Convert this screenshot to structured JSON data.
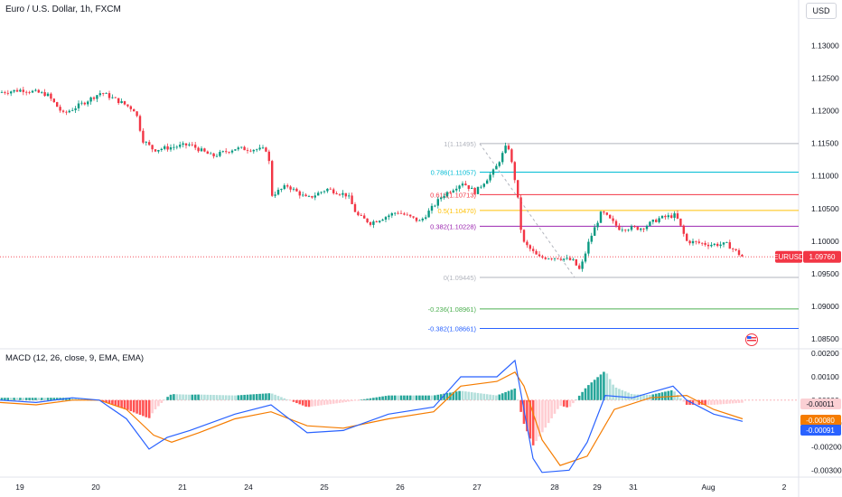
{
  "header": {
    "title": "Euro / U.S. Dollar, 1h, FXCM",
    "currency_button": "USD"
  },
  "price_axis": {
    "ticks": [
      "1.13000",
      "1.12500",
      "1.12000",
      "1.11500",
      "1.11000",
      "1.10500",
      "1.10000",
      "1.09500",
      "1.09000",
      "1.08500"
    ],
    "range": [
      1.0835,
      1.1335
    ]
  },
  "time_axis": {
    "labels": [
      "19",
      "20",
      "21",
      "24",
      "25",
      "26",
      "27",
      "28",
      "29",
      "31",
      "Aug",
      "2"
    ]
  },
  "last_price": {
    "symbol": "EURUSD",
    "value": "1.09760",
    "color": "#f23645"
  },
  "fibonacci": [
    {
      "label": "1(1.11495)",
      "price": 1.11495,
      "color": "#b2b5be"
    },
    {
      "label": "0.786(1.11057)",
      "price": 1.11057,
      "color": "#00bcd4"
    },
    {
      "label": "0.618(1.10713)",
      "price": 1.10713,
      "color": "#f23645"
    },
    {
      "label": "0.5(1.10470)",
      "price": 1.1047,
      "color": "#ffc107"
    },
    {
      "label": "0.382(1.10228)",
      "price": 1.10228,
      "color": "#9c27b0"
    },
    {
      "label": "0(1.09445)",
      "price": 1.09445,
      "color": "#b2b5be"
    },
    {
      "label": "-0.236(1.08961)",
      "price": 1.08961,
      "color": "#4caf50"
    },
    {
      "label": "-0.382(1.08661)",
      "price": 1.08661,
      "color": "#2962ff"
    }
  ],
  "macd": {
    "title": "MACD (12, 26, close, 9, EMA, EMA)",
    "ticks": [
      "0.00200",
      "0.00100",
      "0.00000",
      "-0.00100",
      "-0.00200",
      "-0.00300"
    ],
    "range": [
      -0.0033,
      0.0022
    ],
    "badges": [
      {
        "value": "-0.00011",
        "bg": "#fbd0d4",
        "fg": "#131722"
      },
      {
        "value": "-0.00080",
        "bg": "#f57c00",
        "fg": "#ffffff"
      },
      {
        "value": "-0.00091",
        "bg": "#2962ff",
        "fg": "#ffffff"
      }
    ]
  },
  "colors": {
    "up": "#089981",
    "down": "#f23645",
    "macd_line": "#2962ff",
    "signal_line": "#f57c00"
  },
  "chart_data": {
    "type": "candlestick",
    "symbol": "EURUSD",
    "timeframe": "1h",
    "x_labels": [
      "19",
      "20",
      "21",
      "24",
      "25",
      "26",
      "27",
      "28",
      "29",
      "31",
      "Aug",
      "2"
    ],
    "price_path": [
      [
        0,
        1.1228
      ],
      [
        25,
        1.1232
      ],
      [
        52,
        1.1225
      ],
      [
        70,
        1.1195
      ],
      [
        90,
        1.121
      ],
      [
        112,
        1.1228
      ],
      [
        135,
        1.1212
      ],
      [
        150,
        1.12
      ],
      [
        158,
        1.1155
      ],
      [
        170,
        1.114
      ],
      [
        210,
        1.1148
      ],
      [
        235,
        1.113
      ],
      [
        260,
        1.1142
      ],
      [
        297,
        1.114
      ],
      [
        300,
        1.107
      ],
      [
        318,
        1.1085
      ],
      [
        340,
        1.1065
      ],
      [
        362,
        1.108
      ],
      [
        385,
        1.107
      ],
      [
        395,
        1.104
      ],
      [
        410,
        1.1028
      ],
      [
        440,
        1.1045
      ],
      [
        465,
        1.103
      ],
      [
        490,
        1.107
      ],
      [
        512,
        1.109
      ],
      [
        526,
        1.1075
      ],
      [
        548,
        1.111
      ],
      [
        562,
        1.115
      ],
      [
        572,
        1.108
      ],
      [
        578,
        1.1
      ],
      [
        596,
        1.0975
      ],
      [
        618,
        1.0975
      ],
      [
        634,
        1.097
      ],
      [
        642,
        1.0955
      ],
      [
        652,
        1.1
      ],
      [
        666,
        1.1045
      ],
      [
        685,
        1.102
      ],
      [
        710,
        1.102
      ],
      [
        730,
        1.1035
      ],
      [
        748,
        1.104
      ],
      [
        760,
        1.1
      ],
      [
        785,
        1.0995
      ],
      [
        805,
        1.0995
      ],
      [
        822,
        1.0976
      ]
    ],
    "ylim": [
      1.0835,
      1.1335
    ],
    "macd_line": [
      [
        0,
        0.0
      ],
      [
        40,
        -0.0001
      ],
      [
        80,
        0.0001
      ],
      [
        110,
        0.0
      ],
      [
        140,
        -0.0008
      ],
      [
        165,
        -0.0021
      ],
      [
        185,
        -0.0016
      ],
      [
        210,
        -0.0013
      ],
      [
        260,
        -0.0006
      ],
      [
        300,
        -0.0002
      ],
      [
        340,
        -0.0014
      ],
      [
        380,
        -0.0013
      ],
      [
        430,
        -0.0006
      ],
      [
        480,
        -0.0003
      ],
      [
        510,
        0.001
      ],
      [
        550,
        0.001
      ],
      [
        570,
        0.0017
      ],
      [
        578,
        0.0
      ],
      [
        590,
        -0.0025
      ],
      [
        600,
        -0.0031
      ],
      [
        630,
        -0.003
      ],
      [
        650,
        -0.0018
      ],
      [
        670,
        0.0002
      ],
      [
        700,
        0.0001
      ],
      [
        745,
        0.0006
      ],
      [
        760,
        0.0
      ],
      [
        790,
        -0.0006
      ],
      [
        822,
        -0.00091
      ]
    ],
    "signal_line": [
      [
        0,
        -0.0001
      ],
      [
        40,
        -0.0002
      ],
      [
        80,
        0.0
      ],
      [
        110,
        0.0
      ],
      [
        140,
        -0.0004
      ],
      [
        170,
        -0.0015
      ],
      [
        190,
        -0.0018
      ],
      [
        220,
        -0.0014
      ],
      [
        260,
        -0.0008
      ],
      [
        300,
        -0.0005
      ],
      [
        340,
        -0.0011
      ],
      [
        380,
        -0.0012
      ],
      [
        430,
        -0.0008
      ],
      [
        480,
        -0.0005
      ],
      [
        510,
        0.0006
      ],
      [
        550,
        0.0008
      ],
      [
        570,
        0.0012
      ],
      [
        580,
        0.0006
      ],
      [
        600,
        -0.0017
      ],
      [
        620,
        -0.0028
      ],
      [
        650,
        -0.0024
      ],
      [
        680,
        -0.0004
      ],
      [
        720,
        0.0001
      ],
      [
        760,
        0.0002
      ],
      [
        790,
        -0.0004
      ],
      [
        822,
        -0.0008
      ]
    ],
    "histogram_last": -0.00011
  }
}
